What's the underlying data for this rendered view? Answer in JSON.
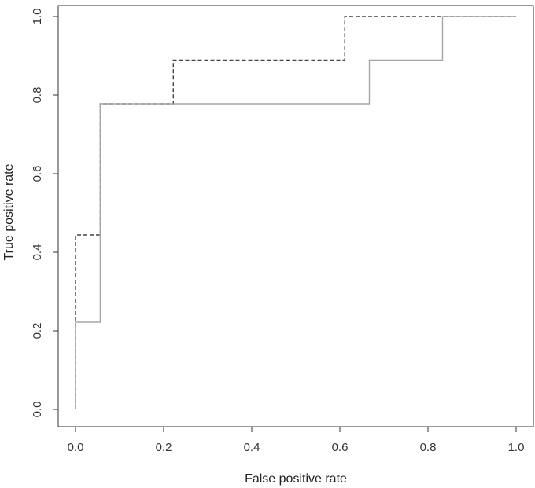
{
  "chart_data": {
    "type": "line",
    "title": "",
    "xlabel": "False positive rate",
    "ylabel": "True positive rate",
    "xlim": [
      0,
      1
    ],
    "ylim": [
      0,
      1
    ],
    "x_ticks": [
      "0.0",
      "0.2",
      "0.4",
      "0.6",
      "0.8",
      "1.0"
    ],
    "y_ticks": [
      "0.0",
      "0.2",
      "0.4",
      "0.6",
      "0.8",
      "1.0"
    ],
    "grid": false,
    "legend": "none",
    "series": [
      {
        "style": "dashed",
        "color": "#444444",
        "x": [
          0,
          0,
          0.056,
          0.056,
          0.222,
          0.222,
          0.611,
          0.611,
          1.0
        ],
        "y": [
          0,
          0.444,
          0.444,
          0.778,
          0.778,
          0.889,
          0.889,
          1.0,
          1.0
        ]
      },
      {
        "style": "solid",
        "color": "#a6a6a6",
        "x": [
          0,
          0,
          0.056,
          0.056,
          0.667,
          0.667,
          0.833,
          0.833,
          1.0
        ],
        "y": [
          0,
          0.222,
          0.222,
          0.778,
          0.778,
          0.889,
          0.889,
          1.0,
          1.0
        ]
      }
    ]
  }
}
